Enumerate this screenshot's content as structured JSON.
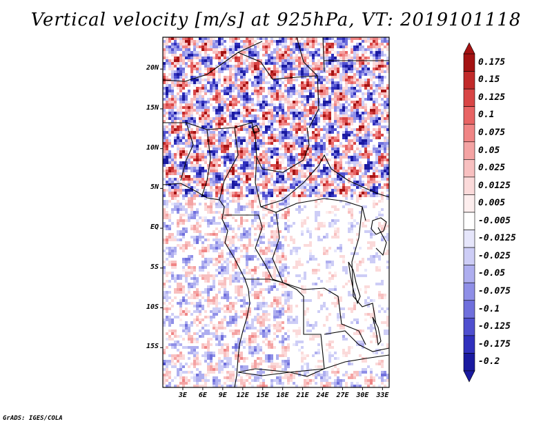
{
  "title": "Vertical velocity [m/s] at 925hPa, VT: 2019101118",
  "credit": "GrADS: IGES/COLA",
  "y_labels": [
    "20N",
    "15N",
    "10N",
    "5N",
    "EQ",
    "5S",
    "10S",
    "15S"
  ],
  "x_labels": [
    "3E",
    "6E",
    "9E",
    "12E",
    "15E",
    "18E",
    "21E",
    "24E",
    "27E",
    "30E",
    "33E"
  ],
  "colorbar": {
    "labels": [
      "0.175",
      "0.15",
      "0.125",
      "0.1",
      "0.075",
      "0.05",
      "0.025",
      "0.0125",
      "0.005",
      "-0.005",
      "-0.0125",
      "-0.025",
      "-0.05",
      "-0.075",
      "-0.1",
      "-0.125",
      "-0.175",
      "-0.2"
    ],
    "colors": [
      "#a41313",
      "#c12a2a",
      "#d84545",
      "#e86464",
      "#f08585",
      "#f4a3a3",
      "#f8c0c0",
      "#fbdada",
      "#fdeeee",
      "#ffffff",
      "#e6e6fb",
      "#cdcdf6",
      "#aeaeef",
      "#8f8fe7",
      "#6f6fdc",
      "#4f4fcf",
      "#3030bd",
      "#1a1aa0"
    ]
  },
  "map": {
    "lon_range": [
      0,
      34
    ],
    "lat_range": [
      -20,
      24
    ]
  }
}
